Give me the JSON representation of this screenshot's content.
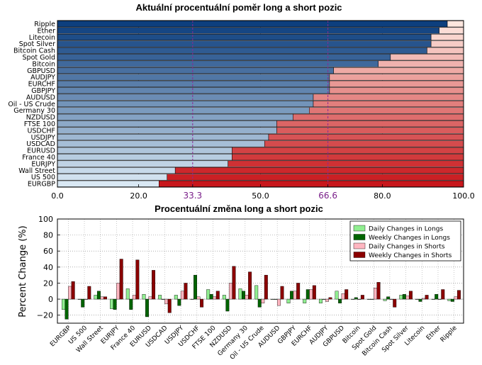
{
  "chart_data": [
    {
      "type": "bar",
      "orientation": "horizontal-stacked",
      "title": "Aktuální procentuální poměr long a short pozic",
      "categories": [
        "Ripple",
        "Ether",
        "Litecoin",
        "Spot Silver",
        "Bitcoin Cash",
        "Spot Gold",
        "Bitcoin",
        "GBPUSD",
        "AUDJPY",
        "EURCHF",
        "GBPJPY",
        "AUDUSD",
        "Oil - US Crude",
        "Germany 30",
        "NZDUSD",
        "FTSE 100",
        "USDCHF",
        "USDJPY",
        "USDCAD",
        "EURUSD",
        "France 40",
        "EURJPY",
        "Wall Street",
        "US 500",
        "EURGBP"
      ],
      "series": [
        {
          "values": [
            96,
            94,
            92,
            92,
            91,
            82,
            79,
            68,
            67,
            67,
            67,
            63,
            63,
            62,
            58,
            54,
            54,
            52,
            51,
            43,
            43,
            42,
            29,
            27,
            25
          ]
        },
        {
          "values": [
            4,
            6,
            8,
            8,
            9,
            18,
            21,
            32,
            33,
            33,
            33,
            37,
            37,
            38,
            42,
            46,
            46,
            48,
            49,
            57,
            57,
            58,
            71,
            73,
            75
          ]
        }
      ],
      "xlim": [
        0,
        100
      ],
      "xticks": [
        "0.0",
        "20.0",
        "33.3",
        "50.0",
        "66.6",
        "80.0",
        "100.0"
      ],
      "reference_lines": [
        33.3,
        66.6
      ],
      "colors": {
        "long_dark": "#0d3f7e",
        "long_light": "#d9e8f4",
        "short_light": "#fde6de",
        "short_dark": "#c8171c",
        "reference": "#8b2a92"
      }
    },
    {
      "type": "bar",
      "orientation": "vertical-grouped",
      "title": "Procentuální změna long a short pozic",
      "ylabel": "Percent Change (%)",
      "ylim": [
        -30,
        100
      ],
      "yticks": [
        "100",
        "80",
        "60",
        "40",
        "20",
        "0",
        "−20"
      ],
      "categories": [
        "EURGBP",
        "US 500",
        "Wall Street",
        "EURJPY",
        "France 40",
        "EURUSD",
        "USDCAD",
        "USDJPY",
        "USDCHF",
        "FTSE 100",
        "NZDUSD",
        "Germany 30",
        "Oil - US Crude",
        "AUDUSD",
        "GBPJPY",
        "EURCHF",
        "AUDJPY",
        "GBPUSD",
        "Bitcoin",
        "Spot Gold",
        "Bitcoin Cash",
        "Spot Silver",
        "Litecoin",
        "Ether",
        "Ripple"
      ],
      "legend_position": "top-right",
      "series": [
        {
          "name": "Daily Changes in Longs",
          "color": "#90ee90",
          "values": [
            -13,
            0,
            5,
            -12,
            13,
            6,
            5,
            5,
            0,
            12,
            5,
            13,
            17,
            0,
            -5,
            -5,
            -5,
            10,
            0,
            0,
            -2,
            5,
            0,
            0,
            -2
          ]
        },
        {
          "name": "Weekly Changes in Longs",
          "color": "#006400",
          "values": [
            -25,
            -10,
            10,
            -13,
            -13,
            -22,
            0,
            -8,
            30,
            6,
            -15,
            10,
            -10,
            0,
            10,
            12,
            0,
            -5,
            2,
            0,
            3,
            6,
            -3,
            6,
            -3
          ]
        },
        {
          "name": "Daily Changes in Shorts",
          "color": "#ffb6c1",
          "values": [
            16,
            0,
            3,
            20,
            5,
            3,
            -6,
            10,
            3,
            3,
            20,
            5,
            -5,
            -8,
            10,
            12,
            -3,
            7,
            0,
            14,
            0,
            4,
            1,
            0,
            3
          ]
        },
        {
          "name": "Weekly Changes in Shorts",
          "color": "#8b0000",
          "values": [
            22,
            16,
            3,
            50,
            49,
            36,
            -17,
            20,
            -10,
            10,
            41,
            34,
            30,
            16,
            20,
            17,
            2,
            12,
            5,
            21,
            -10,
            10,
            5,
            12,
            11
          ]
        }
      ]
    }
  ]
}
